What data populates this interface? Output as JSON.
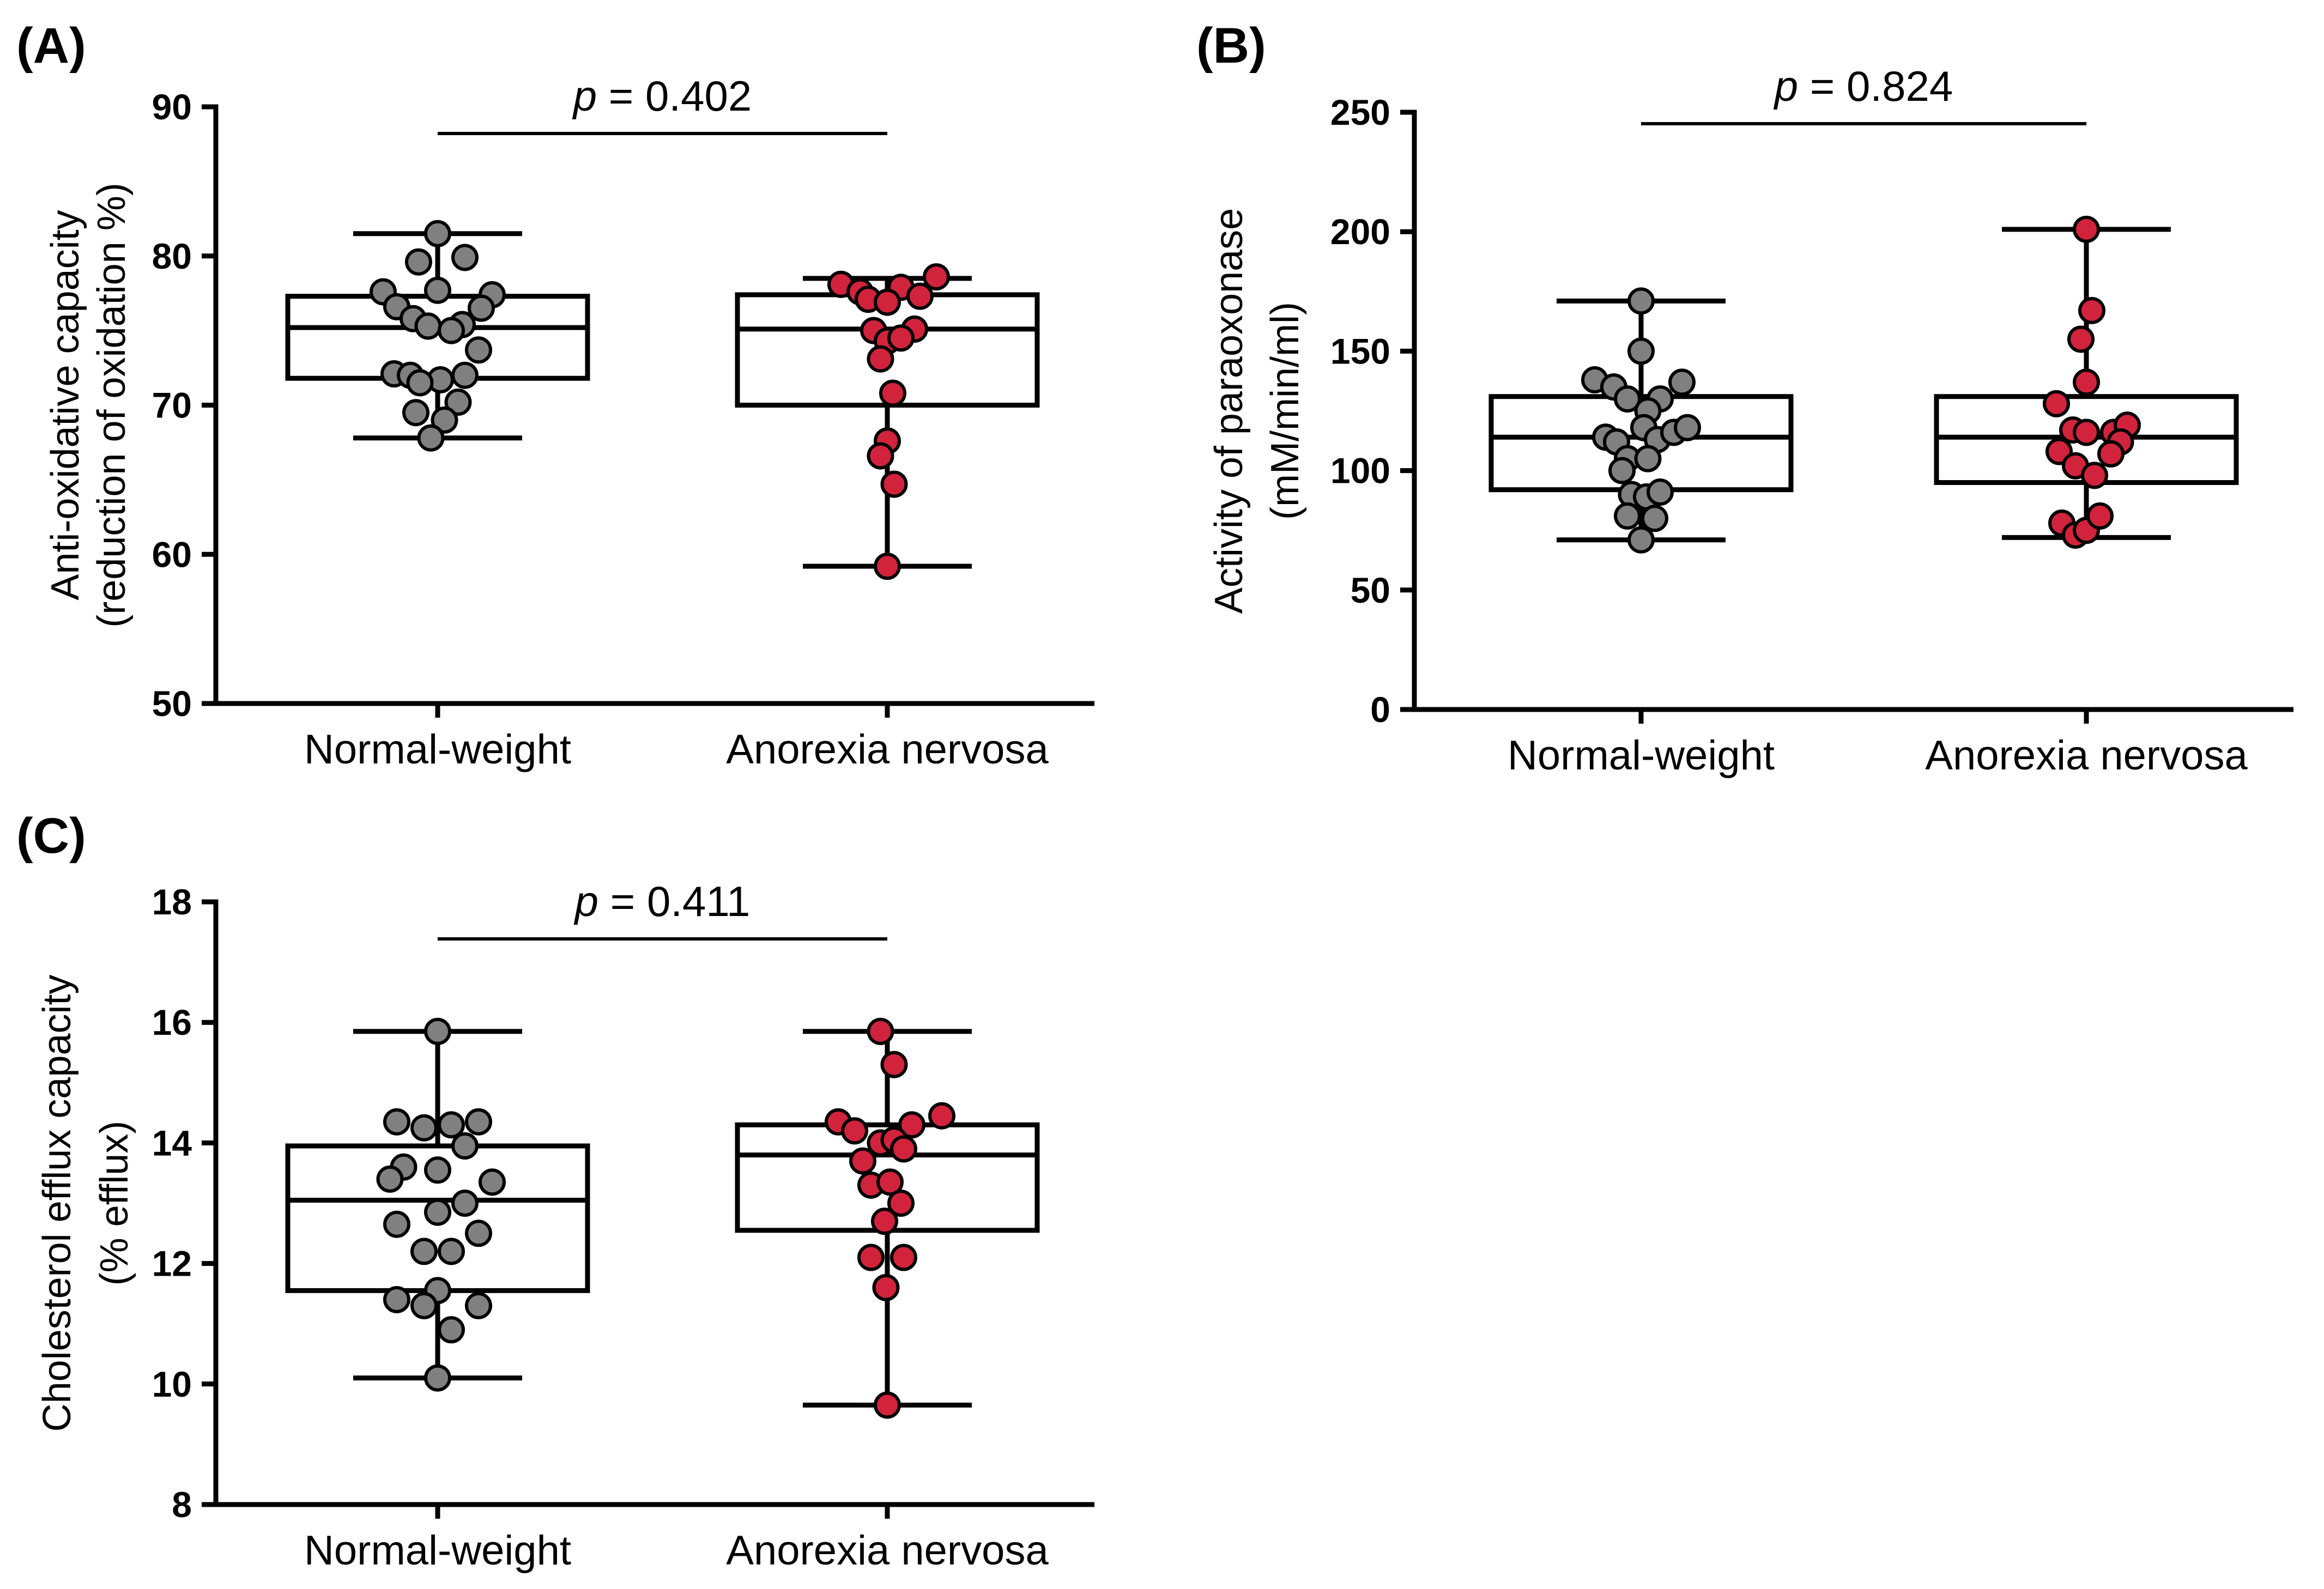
{
  "colors": {
    "normal_weight_fill": "#808080",
    "anorexia_fill": "#d2233c",
    "stroke": "#000000",
    "background": "#ffffff"
  },
  "chart_data": [
    {
      "id": "A",
      "panel_label": "(A)",
      "type": "box",
      "title": "",
      "ylabel_lines": [
        "Anti-oxidative capacity",
        "(reduction of oxidation %)"
      ],
      "xlabel": "",
      "ylim": [
        50,
        90
      ],
      "yticks": [
        50,
        60,
        70,
        80,
        90
      ],
      "categories": [
        "Normal-weight",
        "Anorexia nervosa"
      ],
      "comparison": {
        "prefix": "p",
        "text": " = 0.402"
      },
      "series": [
        {
          "name": "Normal-weight",
          "box": {
            "whisker_low": 67.8,
            "q1": 71.8,
            "median": 75.2,
            "q3": 77.3,
            "whisker_high": 81.5
          },
          "points": [
            {
              "jitter": 0.0,
              "y": 81.5
            },
            {
              "jitter": -0.14,
              "y": 79.6
            },
            {
              "jitter": 0.2,
              "y": 79.9
            },
            {
              "jitter": 0.0,
              "y": 77.7
            },
            {
              "jitter": -0.4,
              "y": 77.6
            },
            {
              "jitter": 0.4,
              "y": 77.4
            },
            {
              "jitter": -0.3,
              "y": 76.6
            },
            {
              "jitter": 0.32,
              "y": 76.5
            },
            {
              "jitter": -0.18,
              "y": 75.8
            },
            {
              "jitter": 0.18,
              "y": 75.4
            },
            {
              "jitter": -0.07,
              "y": 75.3
            },
            {
              "jitter": 0.1,
              "y": 75.0
            },
            {
              "jitter": 0.3,
              "y": 73.7
            },
            {
              "jitter": -0.32,
              "y": 72.1
            },
            {
              "jitter": -0.2,
              "y": 72.0
            },
            {
              "jitter": 0.2,
              "y": 72.0
            },
            {
              "jitter": 0.02,
              "y": 71.7
            },
            {
              "jitter": -0.13,
              "y": 71.5
            },
            {
              "jitter": -0.16,
              "y": 69.5
            },
            {
              "jitter": 0.15,
              "y": 70.2
            },
            {
              "jitter": 0.05,
              "y": 69.0
            },
            {
              "jitter": -0.05,
              "y": 67.8
            }
          ]
        },
        {
          "name": "Anorexia nervosa",
          "box": {
            "whisker_low": 59.2,
            "q1": 70.0,
            "median": 75.1,
            "q3": 77.4,
            "whisker_high": 78.5
          },
          "points": [
            {
              "jitter": -0.34,
              "y": 78.1
            },
            {
              "jitter": -0.2,
              "y": 77.6
            },
            {
              "jitter": -0.14,
              "y": 77.1
            },
            {
              "jitter": 0.1,
              "y": 77.9
            },
            {
              "jitter": 0.24,
              "y": 77.3
            },
            {
              "jitter": 0.36,
              "y": 78.6
            },
            {
              "jitter": 0.0,
              "y": 76.9
            },
            {
              "jitter": -0.1,
              "y": 75.0
            },
            {
              "jitter": 0.2,
              "y": 75.1
            },
            {
              "jitter": 0.0,
              "y": 74.3
            },
            {
              "jitter": 0.1,
              "y": 74.5
            },
            {
              "jitter": -0.05,
              "y": 73.1
            },
            {
              "jitter": 0.04,
              "y": 70.8
            },
            {
              "jitter": 0.0,
              "y": 67.6
            },
            {
              "jitter": -0.05,
              "y": 66.6
            },
            {
              "jitter": 0.05,
              "y": 64.7
            },
            {
              "jitter": 0.0,
              "y": 59.2
            }
          ]
        }
      ]
    },
    {
      "id": "B",
      "panel_label": "(B)",
      "type": "box",
      "title": "",
      "ylabel_lines": [
        "Activity of paraoxonase",
        "(mM/min/ml)"
      ],
      "xlabel": "",
      "ylim": [
        0,
        250
      ],
      "yticks": [
        0,
        50,
        100,
        150,
        200,
        250
      ],
      "categories": [
        "Normal-weight",
        "Anorexia nervosa"
      ],
      "comparison": {
        "prefix": "p",
        "text": " = 0.824"
      },
      "series": [
        {
          "name": "Normal-weight",
          "box": {
            "whisker_low": 71,
            "q1": 92,
            "median": 114,
            "q3": 131,
            "whisker_high": 171
          },
          "points": [
            {
              "jitter": 0.0,
              "y": 171
            },
            {
              "jitter": 0.0,
              "y": 150
            },
            {
              "jitter": -0.34,
              "y": 138
            },
            {
              "jitter": -0.2,
              "y": 135
            },
            {
              "jitter": 0.3,
              "y": 137
            },
            {
              "jitter": -0.1,
              "y": 130
            },
            {
              "jitter": 0.14,
              "y": 130
            },
            {
              "jitter": 0.05,
              "y": 125
            },
            {
              "jitter": -0.26,
              "y": 114
            },
            {
              "jitter": -0.18,
              "y": 112
            },
            {
              "jitter": 0.02,
              "y": 118
            },
            {
              "jitter": 0.12,
              "y": 113
            },
            {
              "jitter": 0.24,
              "y": 116
            },
            {
              "jitter": 0.34,
              "y": 118
            },
            {
              "jitter": -0.1,
              "y": 105
            },
            {
              "jitter": 0.05,
              "y": 105
            },
            {
              "jitter": -0.14,
              "y": 100
            },
            {
              "jitter": -0.07,
              "y": 90
            },
            {
              "jitter": 0.04,
              "y": 89
            },
            {
              "jitter": 0.14,
              "y": 91
            },
            {
              "jitter": -0.1,
              "y": 81
            },
            {
              "jitter": 0.1,
              "y": 80
            },
            {
              "jitter": 0.0,
              "y": 71
            }
          ]
        },
        {
          "name": "Anorexia nervosa",
          "box": {
            "whisker_low": 72,
            "q1": 95,
            "median": 114,
            "q3": 131,
            "whisker_high": 201
          },
          "points": [
            {
              "jitter": 0.0,
              "y": 201
            },
            {
              "jitter": 0.04,
              "y": 167
            },
            {
              "jitter": -0.04,
              "y": 155
            },
            {
              "jitter": 0.0,
              "y": 137
            },
            {
              "jitter": -0.22,
              "y": 128
            },
            {
              "jitter": 0.2,
              "y": 116
            },
            {
              "jitter": 0.3,
              "y": 119
            },
            {
              "jitter": -0.1,
              "y": 117
            },
            {
              "jitter": 0.0,
              "y": 116
            },
            {
              "jitter": 0.25,
              "y": 112
            },
            {
              "jitter": -0.2,
              "y": 108
            },
            {
              "jitter": -0.08,
              "y": 102
            },
            {
              "jitter": 0.06,
              "y": 98
            },
            {
              "jitter": 0.18,
              "y": 107
            },
            {
              "jitter": -0.18,
              "y": 78
            },
            {
              "jitter": -0.08,
              "y": 73
            },
            {
              "jitter": 0.0,
              "y": 75
            },
            {
              "jitter": 0.1,
              "y": 81
            }
          ]
        }
      ]
    },
    {
      "id": "C",
      "panel_label": "(C)",
      "type": "box",
      "title": "",
      "ylabel_lines": [
        "Cholesterol efflux capacity",
        "(% efflux)"
      ],
      "xlabel": "",
      "ylim": [
        8,
        18
      ],
      "yticks": [
        8,
        10,
        12,
        14,
        16,
        18
      ],
      "categories": [
        "Normal-weight",
        "Anorexia nervosa"
      ],
      "comparison": {
        "prefix": "p",
        "text": " = 0.411"
      },
      "series": [
        {
          "name": "Normal-weight",
          "box": {
            "whisker_low": 10.1,
            "q1": 11.55,
            "median": 13.05,
            "q3": 13.95,
            "whisker_high": 15.85
          },
          "points": [
            {
              "jitter": 0.0,
              "y": 15.85
            },
            {
              "jitter": -0.3,
              "y": 14.35
            },
            {
              "jitter": -0.1,
              "y": 14.25
            },
            {
              "jitter": 0.1,
              "y": 14.3
            },
            {
              "jitter": 0.3,
              "y": 14.35
            },
            {
              "jitter": 0.2,
              "y": 13.95
            },
            {
              "jitter": -0.25,
              "y": 13.6
            },
            {
              "jitter": -0.35,
              "y": 13.4
            },
            {
              "jitter": 0.0,
              "y": 13.55
            },
            {
              "jitter": 0.4,
              "y": 13.35
            },
            {
              "jitter": 0.2,
              "y": 13.0
            },
            {
              "jitter": -0.3,
              "y": 12.65
            },
            {
              "jitter": 0.0,
              "y": 12.85
            },
            {
              "jitter": 0.3,
              "y": 12.5
            },
            {
              "jitter": -0.1,
              "y": 12.2
            },
            {
              "jitter": 0.1,
              "y": 12.2
            },
            {
              "jitter": 0.0,
              "y": 11.55
            },
            {
              "jitter": -0.3,
              "y": 11.4
            },
            {
              "jitter": -0.1,
              "y": 11.3
            },
            {
              "jitter": 0.3,
              "y": 11.3
            },
            {
              "jitter": 0.1,
              "y": 10.9
            },
            {
              "jitter": 0.0,
              "y": 10.1
            }
          ]
        },
        {
          "name": "Anorexia nervosa",
          "box": {
            "whisker_low": 9.65,
            "q1": 12.55,
            "median": 13.8,
            "q3": 14.3,
            "whisker_high": 15.85
          },
          "points": [
            {
              "jitter": -0.05,
              "y": 15.85
            },
            {
              "jitter": 0.05,
              "y": 15.3
            },
            {
              "jitter": -0.36,
              "y": 14.35
            },
            {
              "jitter": 0.4,
              "y": 14.45
            },
            {
              "jitter": -0.24,
              "y": 14.2
            },
            {
              "jitter": 0.18,
              "y": 14.3
            },
            {
              "jitter": -0.05,
              "y": 14.0
            },
            {
              "jitter": 0.05,
              "y": 14.05
            },
            {
              "jitter": 0.12,
              "y": 13.9
            },
            {
              "jitter": -0.18,
              "y": 13.7
            },
            {
              "jitter": -0.12,
              "y": 13.3
            },
            {
              "jitter": 0.02,
              "y": 13.35
            },
            {
              "jitter": 0.1,
              "y": 13.0
            },
            {
              "jitter": -0.02,
              "y": 12.7
            },
            {
              "jitter": -0.12,
              "y": 12.1
            },
            {
              "jitter": 0.12,
              "y": 12.1
            },
            {
              "jitter": -0.01,
              "y": 11.6
            },
            {
              "jitter": 0.0,
              "y": 9.65
            }
          ]
        }
      ]
    }
  ]
}
